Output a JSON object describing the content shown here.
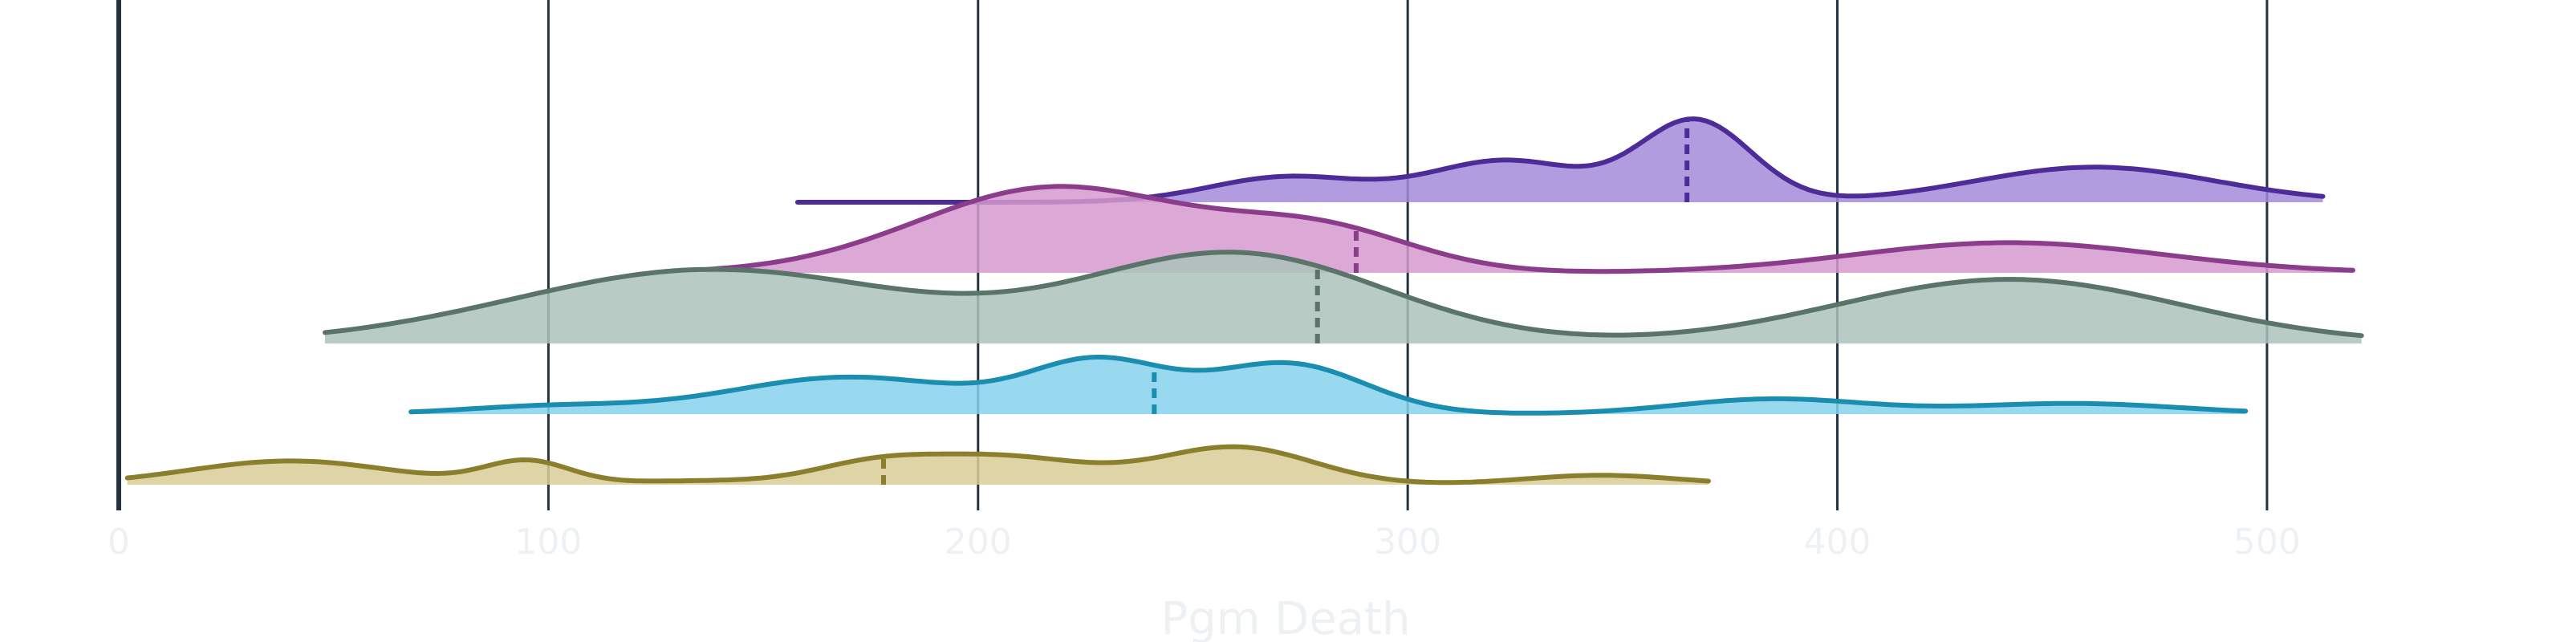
{
  "chart_data": {
    "type": "ridgeline",
    "xlabel": "Pgm Death",
    "xlim": [
      0,
      520
    ],
    "x_ticks": [
      0,
      100,
      200,
      300,
      400,
      500
    ],
    "x_tick_labels": [
      "0",
      "100",
      "200",
      "300",
      "400",
      "500"
    ],
    "grid": "vertical",
    "series": [
      {
        "color": "#8b7f2e",
        "fill": "#d8cd96",
        "range": [
          2,
          370
        ],
        "median": 178,
        "peaks": [
          [
            40,
            0.63,
            24
          ],
          [
            95,
            0.6,
            10
          ],
          [
            135,
            0.1,
            20
          ],
          [
            205,
            0.74,
            20
          ],
          [
            175,
            0.45,
            14
          ],
          [
            260,
            0.99,
            18
          ],
          [
            345,
            0.25,
            18
          ]
        ]
      },
      {
        "color": "#1a8db0",
        "fill": "#86d2ec",
        "range": [
          68,
          495
        ],
        "median": 241,
        "peaks": [
          [
            100,
            0.2,
            20
          ],
          [
            170,
            0.98,
            28
          ],
          [
            228,
            1.33,
            16
          ],
          [
            272,
            1.33,
            18
          ],
          [
            385,
            0.4,
            22
          ],
          [
            455,
            0.28,
            25
          ]
        ]
      },
      {
        "color": "#5a7469",
        "fill": "#acc2bb",
        "range": [
          48,
          522
        ],
        "median": 279,
        "peaks": [
          [
            138,
            1.96,
            46
          ],
          [
            260,
            2.36,
            35
          ],
          [
            440,
            1.7,
            40
          ]
        ]
      },
      {
        "color": "#8b3d8b",
        "fill": "#d699ce",
        "range": [
          137,
          520
        ],
        "median": 288,
        "peaks": [
          [
            218,
            2.27,
            32
          ],
          [
            280,
            1.05,
            22
          ],
          [
            440,
            0.8,
            36
          ]
        ]
      },
      {
        "color": "#4d2c99",
        "fill": "#a28bd9",
        "range": [
          158,
          513
        ],
        "median": 365,
        "peaks": [
          [
            272,
            0.67,
            18
          ],
          [
            323,
            1.1,
            18
          ],
          [
            367,
            2.15,
            13
          ],
          [
            460,
            0.93,
            28
          ]
        ]
      }
    ]
  }
}
